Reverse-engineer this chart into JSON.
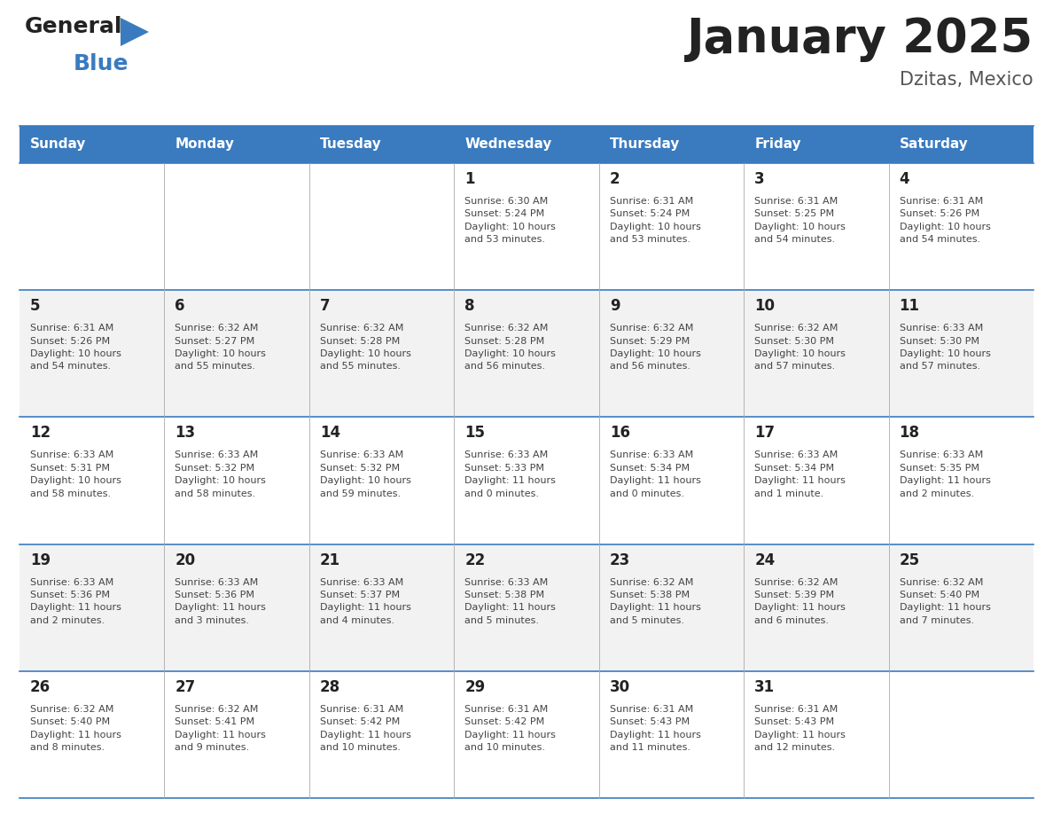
{
  "title": "January 2025",
  "subtitle": "Dzitas, Mexico",
  "header_color": "#3A7BBF",
  "header_text_color": "#FFFFFF",
  "days_of_week": [
    "Sunday",
    "Monday",
    "Tuesday",
    "Wednesday",
    "Thursday",
    "Friday",
    "Saturday"
  ],
  "row_alt_color": "#F2F2F2",
  "row_main_color": "#FFFFFF",
  "border_color": "#3A7BBF",
  "separator_color": "#AAAAAA",
  "day_number_color": "#222222",
  "text_color": "#444444",
  "title_color": "#222222",
  "subtitle_color": "#555555",
  "logo_general_color": "#222222",
  "logo_blue_color": "#3A7BBF",
  "calendar": [
    [
      {
        "day": null,
        "info": null
      },
      {
        "day": null,
        "info": null
      },
      {
        "day": null,
        "info": null
      },
      {
        "day": 1,
        "info": "Sunrise: 6:30 AM\nSunset: 5:24 PM\nDaylight: 10 hours\nand 53 minutes."
      },
      {
        "day": 2,
        "info": "Sunrise: 6:31 AM\nSunset: 5:24 PM\nDaylight: 10 hours\nand 53 minutes."
      },
      {
        "day": 3,
        "info": "Sunrise: 6:31 AM\nSunset: 5:25 PM\nDaylight: 10 hours\nand 54 minutes."
      },
      {
        "day": 4,
        "info": "Sunrise: 6:31 AM\nSunset: 5:26 PM\nDaylight: 10 hours\nand 54 minutes."
      }
    ],
    [
      {
        "day": 5,
        "info": "Sunrise: 6:31 AM\nSunset: 5:26 PM\nDaylight: 10 hours\nand 54 minutes."
      },
      {
        "day": 6,
        "info": "Sunrise: 6:32 AM\nSunset: 5:27 PM\nDaylight: 10 hours\nand 55 minutes."
      },
      {
        "day": 7,
        "info": "Sunrise: 6:32 AM\nSunset: 5:28 PM\nDaylight: 10 hours\nand 55 minutes."
      },
      {
        "day": 8,
        "info": "Sunrise: 6:32 AM\nSunset: 5:28 PM\nDaylight: 10 hours\nand 56 minutes."
      },
      {
        "day": 9,
        "info": "Sunrise: 6:32 AM\nSunset: 5:29 PM\nDaylight: 10 hours\nand 56 minutes."
      },
      {
        "day": 10,
        "info": "Sunrise: 6:32 AM\nSunset: 5:30 PM\nDaylight: 10 hours\nand 57 minutes."
      },
      {
        "day": 11,
        "info": "Sunrise: 6:33 AM\nSunset: 5:30 PM\nDaylight: 10 hours\nand 57 minutes."
      }
    ],
    [
      {
        "day": 12,
        "info": "Sunrise: 6:33 AM\nSunset: 5:31 PM\nDaylight: 10 hours\nand 58 minutes."
      },
      {
        "day": 13,
        "info": "Sunrise: 6:33 AM\nSunset: 5:32 PM\nDaylight: 10 hours\nand 58 minutes."
      },
      {
        "day": 14,
        "info": "Sunrise: 6:33 AM\nSunset: 5:32 PM\nDaylight: 10 hours\nand 59 minutes."
      },
      {
        "day": 15,
        "info": "Sunrise: 6:33 AM\nSunset: 5:33 PM\nDaylight: 11 hours\nand 0 minutes."
      },
      {
        "day": 16,
        "info": "Sunrise: 6:33 AM\nSunset: 5:34 PM\nDaylight: 11 hours\nand 0 minutes."
      },
      {
        "day": 17,
        "info": "Sunrise: 6:33 AM\nSunset: 5:34 PM\nDaylight: 11 hours\nand 1 minute."
      },
      {
        "day": 18,
        "info": "Sunrise: 6:33 AM\nSunset: 5:35 PM\nDaylight: 11 hours\nand 2 minutes."
      }
    ],
    [
      {
        "day": 19,
        "info": "Sunrise: 6:33 AM\nSunset: 5:36 PM\nDaylight: 11 hours\nand 2 minutes."
      },
      {
        "day": 20,
        "info": "Sunrise: 6:33 AM\nSunset: 5:36 PM\nDaylight: 11 hours\nand 3 minutes."
      },
      {
        "day": 21,
        "info": "Sunrise: 6:33 AM\nSunset: 5:37 PM\nDaylight: 11 hours\nand 4 minutes."
      },
      {
        "day": 22,
        "info": "Sunrise: 6:33 AM\nSunset: 5:38 PM\nDaylight: 11 hours\nand 5 minutes."
      },
      {
        "day": 23,
        "info": "Sunrise: 6:32 AM\nSunset: 5:38 PM\nDaylight: 11 hours\nand 5 minutes."
      },
      {
        "day": 24,
        "info": "Sunrise: 6:32 AM\nSunset: 5:39 PM\nDaylight: 11 hours\nand 6 minutes."
      },
      {
        "day": 25,
        "info": "Sunrise: 6:32 AM\nSunset: 5:40 PM\nDaylight: 11 hours\nand 7 minutes."
      }
    ],
    [
      {
        "day": 26,
        "info": "Sunrise: 6:32 AM\nSunset: 5:40 PM\nDaylight: 11 hours\nand 8 minutes."
      },
      {
        "day": 27,
        "info": "Sunrise: 6:32 AM\nSunset: 5:41 PM\nDaylight: 11 hours\nand 9 minutes."
      },
      {
        "day": 28,
        "info": "Sunrise: 6:31 AM\nSunset: 5:42 PM\nDaylight: 11 hours\nand 10 minutes."
      },
      {
        "day": 29,
        "info": "Sunrise: 6:31 AM\nSunset: 5:42 PM\nDaylight: 11 hours\nand 10 minutes."
      },
      {
        "day": 30,
        "info": "Sunrise: 6:31 AM\nSunset: 5:43 PM\nDaylight: 11 hours\nand 11 minutes."
      },
      {
        "day": 31,
        "info": "Sunrise: 6:31 AM\nSunset: 5:43 PM\nDaylight: 11 hours\nand 12 minutes."
      },
      {
        "day": null,
        "info": null
      }
    ]
  ],
  "fig_width": 11.88,
  "fig_height": 9.18,
  "dpi": 100
}
